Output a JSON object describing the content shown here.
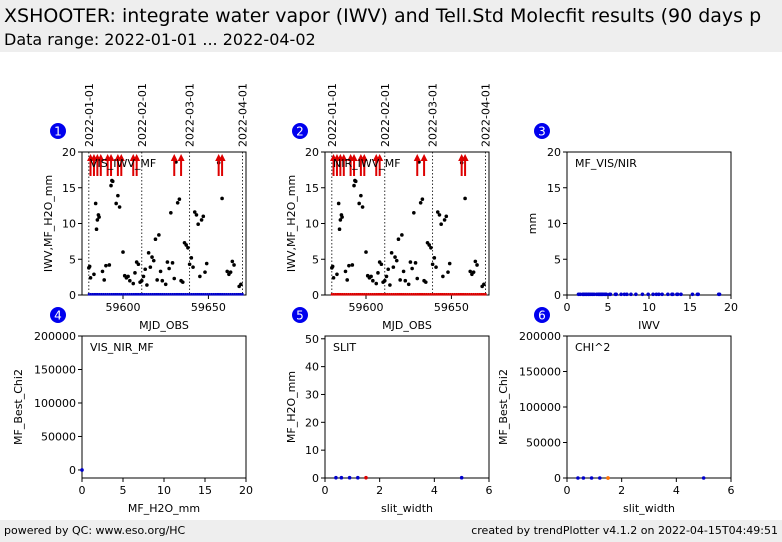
{
  "header": {
    "title": "XSHOOTER: integrate water vapor (IWV) and Tell.Std Molecfit results (90 days p",
    "subtitle": "Data range: 2022-01-01 ... 2022-04-02"
  },
  "footer": {
    "left": "powered by QC: www.eso.org/HC",
    "right": "created by trendPlotter v4.1.2 on 2022-04-15T04:49:51"
  },
  "colors": {
    "badge": "#0000ee",
    "black": "#000000",
    "blue": "#0000cc",
    "red": "#dd0000",
    "orange": "#ff7700",
    "dateline": "#000000"
  },
  "chart_data": [
    {
      "id": 1,
      "type": "scatter",
      "label": "VIS_IWV_MF",
      "xlabel": "MJD_OBS",
      "ylabel": "IWV,MF_H2O_mm",
      "xlim": [
        59576,
        59672
      ],
      "ylim": [
        0,
        20
      ],
      "xticks": [
        59600,
        59650
      ],
      "yticks": [
        0,
        5,
        10,
        15,
        20
      ],
      "date_markers": [
        {
          "x": 59580,
          "label": "2022-01-01"
        },
        {
          "x": 59611,
          "label": "2022-02-01"
        },
        {
          "x": 59639,
          "label": "2022-03-01"
        },
        {
          "x": 59670,
          "label": "2022-04-01"
        }
      ],
      "arrow_x": [
        59581,
        59583,
        59585,
        59587,
        59591,
        59593,
        59597,
        59599,
        59606,
        59608,
        59630,
        59634,
        59656,
        59658
      ],
      "arrow_color": "red",
      "baseline": {
        "y": 0.1,
        "color": "blue",
        "x_from": 59580,
        "x_to": 59670,
        "step": 1.2
      },
      "series": [
        {
          "color": "black",
          "points": [
            [
              59580,
              3.8
            ],
            [
              59580.5,
              4.0
            ],
            [
              59581,
              2.4
            ],
            [
              59583,
              2.9
            ],
            [
              59584,
              12.8
            ],
            [
              59584.5,
              9.2
            ],
            [
              59585,
              10.5
            ],
            [
              59585.6,
              11.2
            ],
            [
              59586,
              10.9
            ],
            [
              59588,
              3.3
            ],
            [
              59589,
              2.1
            ],
            [
              59590,
              4.1
            ],
            [
              59592,
              4.2
            ],
            [
              59593,
              15.3
            ],
            [
              59593.5,
              16.0
            ],
            [
              59594,
              15.9
            ],
            [
              59596,
              12.8
            ],
            [
              59597,
              13.9
            ],
            [
              59598,
              12.3
            ],
            [
              59600,
              6.0
            ],
            [
              59601,
              2.7
            ],
            [
              59602,
              2.4
            ],
            [
              59603,
              2.6
            ],
            [
              59604,
              2.0
            ],
            [
              59606,
              1.6
            ],
            [
              59607,
              3.1
            ],
            [
              59608,
              4.6
            ],
            [
              59609,
              4.3
            ],
            [
              59610,
              1.8
            ],
            [
              59611,
              2.0
            ],
            [
              59612,
              2.6
            ],
            [
              59613,
              3.6
            ],
            [
              59614,
              1.4
            ],
            [
              59615,
              5.9
            ],
            [
              59616,
              3.9
            ],
            [
              59617,
              5.3
            ],
            [
              59618,
              4.8
            ],
            [
              59619,
              7.8
            ],
            [
              59620,
              2.1
            ],
            [
              59621,
              8.4
            ],
            [
              59622,
              3.3
            ],
            [
              59623,
              2.0
            ],
            [
              59625,
              1.5
            ],
            [
              59626,
              4.6
            ],
            [
              59627,
              3.7
            ],
            [
              59628,
              11.5
            ],
            [
              59629,
              4.5
            ],
            [
              59630,
              2.3
            ],
            [
              59631,
              18.6
            ],
            [
              59632,
              12.9
            ],
            [
              59633,
              13.4
            ],
            [
              59634,
              2.0
            ],
            [
              59635,
              1.8
            ],
            [
              59636,
              7.3
            ],
            [
              59637,
              7.0
            ],
            [
              59638,
              6.6
            ],
            [
              59639,
              4.3
            ],
            [
              59640,
              5.2
            ],
            [
              59641,
              3.9
            ],
            [
              59642,
              11.6
            ],
            [
              59643,
              11.2
            ],
            [
              59644,
              9.9
            ],
            [
              59645,
              2.6
            ],
            [
              59646,
              10.5
            ],
            [
              59647,
              11.0
            ],
            [
              59648,
              3.2
            ],
            [
              59649,
              4.4
            ],
            [
              59656,
              18.5
            ],
            [
              59658,
              13.5
            ],
            [
              59661,
              3.3
            ],
            [
              59662,
              2.9
            ],
            [
              59663,
              3.2
            ],
            [
              59664,
              4.7
            ],
            [
              59665,
              4.2
            ],
            [
              59668,
              1.2
            ],
            [
              59669,
              1.5
            ]
          ]
        }
      ]
    },
    {
      "id": 2,
      "type": "scatter",
      "label": "NIR_IWV_MF",
      "xlabel": "MJD_OBS",
      "ylabel": "IWV,MF_H2O_mm",
      "xlim": [
        59576,
        59672
      ],
      "ylim": [
        0,
        20
      ],
      "xticks": [
        59600,
        59650
      ],
      "yticks": [
        0,
        5,
        10,
        15,
        20
      ],
      "date_markers": [
        {
          "x": 59580,
          "label": "2022-01-01"
        },
        {
          "x": 59611,
          "label": "2022-02-01"
        },
        {
          "x": 59639,
          "label": "2022-03-01"
        },
        {
          "x": 59670,
          "label": "2022-04-01"
        }
      ],
      "arrow_x": [
        59581,
        59583,
        59585,
        59587,
        59591,
        59593,
        59597,
        59599,
        59606,
        59608,
        59630,
        59634,
        59656,
        59658
      ],
      "arrow_color": "red",
      "baseline": {
        "y": 0.1,
        "color": "red",
        "x_from": 59580,
        "x_to": 59670,
        "step": 1.2
      },
      "series": [
        {
          "color": "black",
          "points": [
            [
              59580,
              3.8
            ],
            [
              59580.5,
              4.0
            ],
            [
              59581,
              2.4
            ],
            [
              59583,
              2.9
            ],
            [
              59584,
              12.8
            ],
            [
              59584.5,
              9.2
            ],
            [
              59585,
              10.5
            ],
            [
              59585.6,
              11.2
            ],
            [
              59586,
              10.9
            ],
            [
              59588,
              3.3
            ],
            [
              59589,
              2.1
            ],
            [
              59590,
              4.1
            ],
            [
              59592,
              4.2
            ],
            [
              59593,
              15.3
            ],
            [
              59593.5,
              16.0
            ],
            [
              59594,
              15.9
            ],
            [
              59596,
              12.8
            ],
            [
              59597,
              13.9
            ],
            [
              59598,
              12.3
            ],
            [
              59600,
              6.0
            ],
            [
              59601,
              2.7
            ],
            [
              59602,
              2.4
            ],
            [
              59603,
              2.6
            ],
            [
              59604,
              2.0
            ],
            [
              59606,
              1.6
            ],
            [
              59607,
              3.1
            ],
            [
              59608,
              4.6
            ],
            [
              59609,
              4.3
            ],
            [
              59610,
              1.8
            ],
            [
              59611,
              2.0
            ],
            [
              59612,
              2.6
            ],
            [
              59613,
              3.6
            ],
            [
              59614,
              1.4
            ],
            [
              59615,
              5.9
            ],
            [
              59616,
              3.9
            ],
            [
              59617,
              5.3
            ],
            [
              59618,
              4.8
            ],
            [
              59619,
              7.8
            ],
            [
              59620,
              2.1
            ],
            [
              59621,
              8.4
            ],
            [
              59622,
              3.3
            ],
            [
              59623,
              2.0
            ],
            [
              59625,
              1.5
            ],
            [
              59626,
              4.6
            ],
            [
              59627,
              3.7
            ],
            [
              59628,
              11.5
            ],
            [
              59629,
              4.5
            ],
            [
              59630,
              2.3
            ],
            [
              59631,
              18.6
            ],
            [
              59632,
              12.9
            ],
            [
              59633,
              13.4
            ],
            [
              59634,
              2.0
            ],
            [
              59635,
              1.8
            ],
            [
              59636,
              7.3
            ],
            [
              59637,
              7.0
            ],
            [
              59638,
              6.6
            ],
            [
              59639,
              4.3
            ],
            [
              59640,
              5.2
            ],
            [
              59641,
              3.9
            ],
            [
              59642,
              11.6
            ],
            [
              59643,
              11.2
            ],
            [
              59644,
              9.9
            ],
            [
              59645,
              2.6
            ],
            [
              59646,
              10.5
            ],
            [
              59647,
              11.0
            ],
            [
              59648,
              3.2
            ],
            [
              59649,
              4.4
            ],
            [
              59656,
              18.5
            ],
            [
              59658,
              13.5
            ],
            [
              59661,
              3.3
            ],
            [
              59662,
              2.9
            ],
            [
              59663,
              3.2
            ],
            [
              59664,
              4.7
            ],
            [
              59665,
              4.2
            ],
            [
              59668,
              1.2
            ],
            [
              59669,
              1.5
            ]
          ]
        }
      ]
    },
    {
      "id": 3,
      "type": "scatter",
      "label": "MF_VIS/NIR",
      "xlabel": "IWV",
      "ylabel": "mm",
      "xlim": [
        0,
        20
      ],
      "ylim": [
        0,
        20
      ],
      "xticks": [
        0,
        5,
        10,
        15,
        20
      ],
      "yticks": [
        0,
        5,
        10,
        15,
        20
      ],
      "series": [
        {
          "color": "blue",
          "points": [
            [
              1.4,
              0.1
            ],
            [
              1.6,
              0.1
            ],
            [
              1.9,
              0.1
            ],
            [
              2.0,
              0.1
            ],
            [
              2.1,
              0.1
            ],
            [
              2.3,
              0.1
            ],
            [
              2.4,
              0.1
            ],
            [
              2.6,
              0.1
            ],
            [
              2.7,
              0.1
            ],
            [
              2.9,
              0.1
            ],
            [
              3.1,
              0.1
            ],
            [
              3.3,
              0.1
            ],
            [
              3.6,
              0.1
            ],
            [
              3.8,
              0.1
            ],
            [
              3.9,
              0.1
            ],
            [
              4.0,
              0.1
            ],
            [
              4.1,
              0.1
            ],
            [
              4.2,
              0.1
            ],
            [
              4.3,
              0.1
            ],
            [
              4.4,
              0.1
            ],
            [
              4.6,
              0.1
            ],
            [
              4.7,
              0.1
            ],
            [
              4.8,
              0.1
            ],
            [
              5.2,
              0.1
            ],
            [
              5.3,
              0.1
            ],
            [
              5.9,
              0.1
            ],
            [
              6.0,
              0.1
            ],
            [
              6.6,
              0.1
            ],
            [
              7.0,
              0.1
            ],
            [
              7.3,
              0.1
            ],
            [
              7.8,
              0.1
            ],
            [
              8.4,
              0.1
            ],
            [
              9.2,
              0.1
            ],
            [
              9.9,
              0.1
            ],
            [
              10.5,
              0.1
            ],
            [
              10.9,
              0.1
            ],
            [
              11.2,
              0.1
            ],
            [
              11.6,
              0.1
            ],
            [
              12.3,
              0.1
            ],
            [
              12.8,
              0.1
            ],
            [
              12.9,
              0.1
            ],
            [
              13.4,
              0.1
            ],
            [
              13.5,
              0.1
            ],
            [
              13.9,
              0.1
            ],
            [
              15.3,
              0.1
            ],
            [
              15.9,
              0.1
            ],
            [
              16.0,
              0.1
            ],
            [
              18.5,
              0.1
            ],
            [
              18.6,
              0.1
            ]
          ]
        }
      ]
    },
    {
      "id": 4,
      "type": "scatter",
      "label": "VIS_NIR_MF",
      "xlabel": "MF_H2O_mm",
      "ylabel": "MF_Best_Chi2",
      "xlim": [
        0,
        20
      ],
      "ylim": [
        -12000,
        200000
      ],
      "xticks": [
        0,
        5,
        10,
        15,
        20
      ],
      "yticks": [
        0,
        50000,
        100000,
        150000,
        200000
      ],
      "series": [
        {
          "color": "blue",
          "points": [
            [
              0,
              0
            ]
          ]
        }
      ]
    },
    {
      "id": 5,
      "type": "scatter",
      "label": "SLIT",
      "xlabel": "slit_width",
      "ylabel": "MF_H2O_mm",
      "xlim": [
        0,
        6
      ],
      "ylim": [
        0,
        51
      ],
      "xticks": [
        0,
        2,
        4,
        6
      ],
      "yticks": [
        0,
        10,
        20,
        30,
        40,
        50
      ],
      "series": [
        {
          "color": "blue",
          "points": [
            [
              0.4,
              0.1
            ],
            [
              0.6,
              0.1
            ],
            [
              0.9,
              0.1
            ],
            [
              1.2,
              0.1
            ],
            [
              5.0,
              0.1
            ]
          ]
        },
        {
          "color": "red",
          "points": [
            [
              1.5,
              0.1
            ]
          ]
        }
      ]
    },
    {
      "id": 6,
      "type": "scatter",
      "label": "CHI^2",
      "xlabel": "slit_width",
      "ylabel": "MF_Best_Chi2",
      "xlim": [
        0,
        6
      ],
      "ylim": [
        0,
        200000
      ],
      "xticks": [
        0,
        2,
        4,
        6
      ],
      "yticks": [
        0,
        50000,
        100000,
        150000,
        200000
      ],
      "series": [
        {
          "color": "blue",
          "points": [
            [
              0.4,
              0
            ],
            [
              0.6,
              0
            ],
            [
              0.9,
              0
            ],
            [
              1.2,
              0
            ],
            [
              5.0,
              0
            ]
          ]
        },
        {
          "color": "red",
          "points": [
            [
              1.5,
              0
            ]
          ]
        },
        {
          "color": "orange",
          "points": [
            [
              1.5,
              0
            ]
          ]
        }
      ]
    }
  ]
}
